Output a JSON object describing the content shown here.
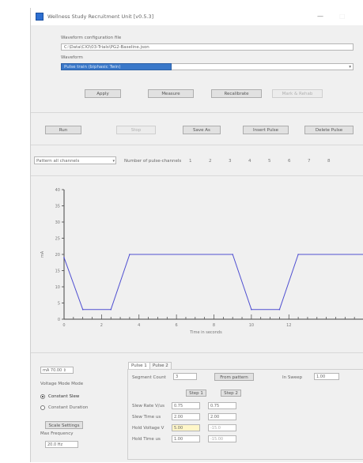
{
  "window": {
    "title": "Wellness Study Recruitment Unit [v0.5.3]",
    "min": "—",
    "max": "□"
  },
  "top": {
    "pulse_file_label": "Waveform configuration file",
    "pulse_file_value": "C:\\Data\\CIO\\03-Trials\\PG2-Baseline.json",
    "waveform_label": "Waveform",
    "waveform_value": "Pulse train (biphasic Twin)",
    "buttons": [
      "Apply",
      "Measure",
      "Recalibrate",
      "Mark & Rehab"
    ]
  },
  "controls": {
    "buttons": [
      "Run",
      "Stop",
      "Save As",
      "Insert Pulse",
      "Delete Pulse"
    ]
  },
  "pattern": {
    "mode": "Pattern all channels",
    "points_label": "Number of pulse-channels",
    "points": [
      "1",
      "2",
      "3",
      "4",
      "5",
      "6",
      "7",
      "8"
    ]
  },
  "chart_data": {
    "type": "line",
    "title": "",
    "xlabel": "Time in seconds",
    "ylabel": "mA",
    "xlim": [
      0,
      16
    ],
    "ylim": [
      0,
      40
    ],
    "x_ticks": [
      "0",
      "2",
      "4",
      "6",
      "8",
      "10",
      "12"
    ],
    "y_ticks": [
      "0",
      "5",
      "10",
      "15",
      "20",
      "25",
      "30",
      "35",
      "40"
    ],
    "series": [
      {
        "color": "#4f4fd1",
        "x": [
          0,
          1,
          2.5,
          3.5,
          9,
          10,
          11.5,
          12.5,
          16
        ],
        "y": [
          19,
          3,
          3,
          20,
          20,
          3,
          3,
          20,
          20
        ]
      }
    ]
  },
  "bottom": {
    "current_value": "70.00",
    "current_unit": "mA",
    "voltage_mode_label": "Voltage Mode Mode",
    "radio_constant_slew": "Constant Slew",
    "radio_constant_duration": "Constant Duration",
    "scale_settings": "Scale Settings",
    "max_frequency_label": "Max Frequency",
    "max_frequency_value": "20.0 Hz",
    "tabs": [
      "Pulse 1",
      "Pulse 2"
    ],
    "segment_count_label": "Segment Count",
    "segment_count_value": "3",
    "from_pattern_btn": "From pattern",
    "in_sweep_label": "In Sweep",
    "in_sweep_value": "1.00",
    "step_btns": [
      "Step 1",
      "Step 2"
    ],
    "rows": [
      {
        "label": "Slew Rate V/us",
        "a": "0.75",
        "b": "0.75"
      },
      {
        "label": "Slew Time us",
        "a": "2.00",
        "b": "2.00"
      },
      {
        "label": "Hold Voltage V",
        "a": "5.00",
        "b": "-15.0"
      },
      {
        "label": "Hold Time us",
        "a": "1.00",
        "b": "-15.00"
      }
    ]
  }
}
